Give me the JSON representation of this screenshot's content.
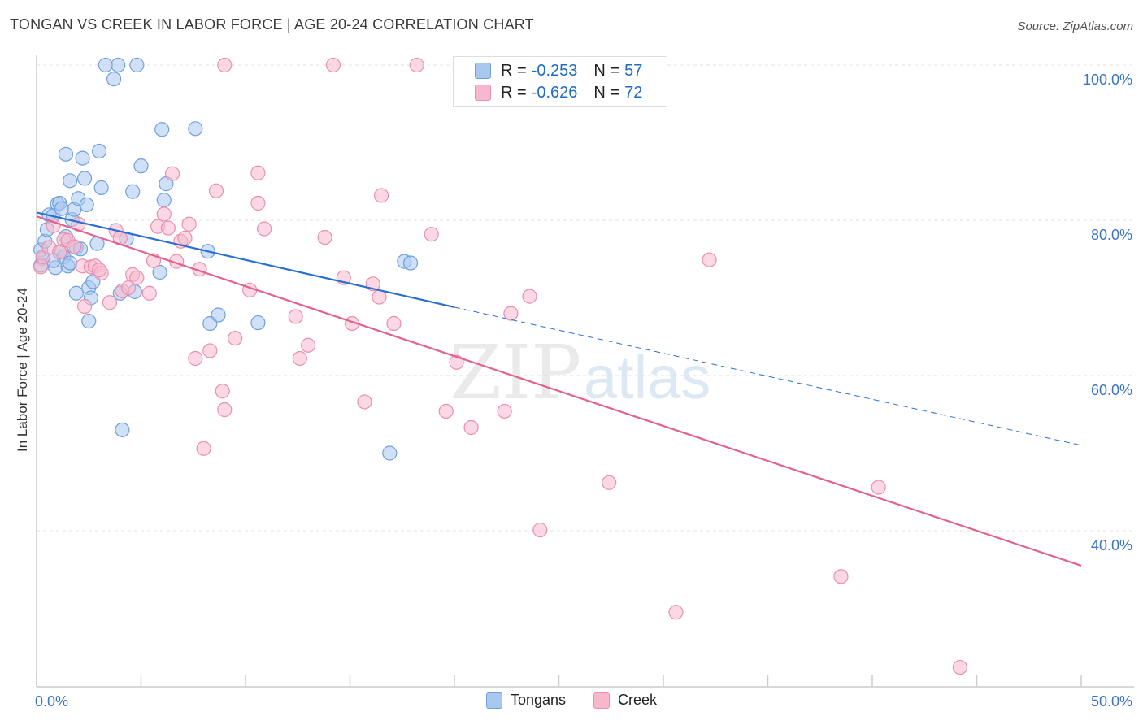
{
  "header": {
    "title": "TONGAN VS CREEK IN LABOR FORCE | AGE 20-24 CORRELATION CHART",
    "source": "Source: ZipAtlas.com"
  },
  "legend": {
    "rows": [
      {
        "r_label": "R =",
        "r_value": "-0.253",
        "n_label": "N =",
        "n_value": "57"
      },
      {
        "r_label": "R =",
        "r_value": "-0.626",
        "n_label": "N =",
        "n_value": "72"
      }
    ]
  },
  "bottom_legend": [
    "Tongans",
    "Creek"
  ],
  "watermark": {
    "zip": "ZIP",
    "atlas": "atlas"
  },
  "colors": {
    "tongans_fill": "#a9c8f0",
    "tongans_stroke": "#6fa0dc",
    "tongans_line": "#2a6fd1",
    "creek_fill": "#f7b8cc",
    "creek_stroke": "#ea8fb0",
    "creek_line": "#e2628f",
    "tick_text": "#3a74c8",
    "grid": "#e2e2e2"
  },
  "chart_data": {
    "type": "scatter",
    "title": "TONGAN VS CREEK IN LABOR FORCE | AGE 20-24 CORRELATION CHART",
    "xlabel": "",
    "ylabel": "In Labor Force | Age 20-24",
    "xlim": [
      0,
      50
    ],
    "ylim": [
      20,
      102
    ],
    "x_tick_labels": [
      {
        "value": 0,
        "label": "0.0%"
      },
      {
        "value": 50,
        "label": "50.0%"
      }
    ],
    "y_ticks": [
      {
        "value": 100,
        "label": "100.0%"
      },
      {
        "value": 80,
        "label": "80.0%"
      },
      {
        "value": 60,
        "label": "60.0%"
      },
      {
        "value": 40,
        "label": "40.0%"
      }
    ],
    "series": [
      {
        "name": "Tongans",
        "R": -0.253,
        "N": 57,
        "trend": {
          "x0": 0,
          "y0": 81.0,
          "x1": 20,
          "y1": 68.8,
          "dash_to_x": 50,
          "dash_to_y": 51.0
        },
        "points": [
          [
            0.2,
            76.2
          ],
          [
            0.3,
            75.1
          ],
          [
            0.2,
            74.2
          ],
          [
            0.4,
            77.3
          ],
          [
            0.5,
            78.8
          ],
          [
            0.6,
            80.7
          ],
          [
            0.8,
            80.6
          ],
          [
            0.9,
            73.9
          ],
          [
            1.0,
            82.1
          ],
          [
            1.1,
            82.2
          ],
          [
            1.2,
            76.0
          ],
          [
            1.2,
            81.5
          ],
          [
            1.3,
            75.3
          ],
          [
            1.4,
            77.9
          ],
          [
            1.5,
            74.1
          ],
          [
            1.6,
            85.1
          ],
          [
            1.7,
            80.1
          ],
          [
            1.8,
            81.4
          ],
          [
            1.9,
            76.5
          ],
          [
            1.9,
            70.6
          ],
          [
            2.0,
            82.8
          ],
          [
            2.1,
            76.3
          ],
          [
            2.3,
            85.4
          ],
          [
            2.4,
            82.0
          ],
          [
            2.5,
            67.0
          ],
          [
            2.5,
            71.3
          ],
          [
            2.6,
            70.0
          ],
          [
            2.7,
            72.1
          ],
          [
            2.9,
            77.0
          ],
          [
            3.0,
            88.9
          ],
          [
            3.1,
            84.2
          ],
          [
            3.3,
            100.0
          ],
          [
            3.7,
            98.2
          ],
          [
            3.9,
            100.0
          ],
          [
            4.0,
            70.6
          ],
          [
            4.1,
            53.0
          ],
          [
            4.3,
            77.6
          ],
          [
            4.6,
            83.7
          ],
          [
            4.7,
            70.8
          ],
          [
            4.8,
            100.0
          ],
          [
            5.0,
            87.0
          ],
          [
            5.9,
            73.3
          ],
          [
            6.0,
            91.7
          ],
          [
            6.1,
            82.6
          ],
          [
            6.2,
            84.7
          ],
          [
            7.6,
            91.8
          ],
          [
            8.2,
            76.0
          ],
          [
            8.3,
            66.7
          ],
          [
            8.7,
            67.8
          ],
          [
            10.6,
            66.8
          ],
          [
            1.4,
            88.5
          ],
          [
            2.2,
            88.0
          ],
          [
            17.6,
            74.7
          ],
          [
            17.9,
            74.5
          ],
          [
            16.9,
            50.0
          ],
          [
            0.8,
            74.8
          ],
          [
            1.6,
            74.5
          ]
        ]
      },
      {
        "name": "Creek",
        "R": -0.626,
        "N": 72,
        "trend": {
          "x0": 0,
          "y0": 80.5,
          "x1": 50,
          "y1": 35.5
        },
        "points": [
          [
            0.2,
            74.0
          ],
          [
            0.3,
            75.3
          ],
          [
            0.6,
            76.5
          ],
          [
            0.8,
            79.3
          ],
          [
            1.1,
            75.9
          ],
          [
            1.3,
            77.5
          ],
          [
            1.5,
            77.4
          ],
          [
            1.8,
            76.6
          ],
          [
            2.0,
            79.5
          ],
          [
            2.2,
            74.1
          ],
          [
            2.3,
            68.9
          ],
          [
            2.6,
            74.0
          ],
          [
            2.8,
            74.1
          ],
          [
            3.1,
            73.2
          ],
          [
            3.5,
            69.4
          ],
          [
            3.8,
            78.7
          ],
          [
            4.0,
            77.7
          ],
          [
            4.1,
            70.9
          ],
          [
            4.4,
            71.3
          ],
          [
            4.6,
            73.0
          ],
          [
            4.8,
            72.6
          ],
          [
            5.4,
            70.6
          ],
          [
            5.6,
            74.8
          ],
          [
            5.8,
            79.2
          ],
          [
            6.1,
            80.8
          ],
          [
            6.3,
            79.0
          ],
          [
            6.5,
            86.0
          ],
          [
            6.7,
            74.7
          ],
          [
            6.9,
            77.3
          ],
          [
            7.1,
            77.7
          ],
          [
            7.3,
            79.5
          ],
          [
            7.6,
            62.2
          ],
          [
            7.8,
            73.7
          ],
          [
            8.0,
            50.6
          ],
          [
            8.3,
            63.2
          ],
          [
            8.6,
            83.8
          ],
          [
            8.9,
            58.0
          ],
          [
            9.0,
            55.6
          ],
          [
            9.5,
            64.8
          ],
          [
            10.2,
            71.0
          ],
          [
            10.6,
            82.2
          ],
          [
            10.6,
            86.1
          ],
          [
            10.9,
            78.9
          ],
          [
            12.4,
            67.6
          ],
          [
            12.6,
            62.2
          ],
          [
            13.0,
            63.9
          ],
          [
            13.8,
            77.8
          ],
          [
            14.2,
            100.0
          ],
          [
            14.7,
            72.6
          ],
          [
            15.1,
            66.7
          ],
          [
            15.7,
            56.6
          ],
          [
            16.1,
            71.8
          ],
          [
            16.4,
            70.1
          ],
          [
            16.5,
            83.2
          ],
          [
            17.1,
            66.7
          ],
          [
            18.9,
            78.2
          ],
          [
            19.6,
            55.4
          ],
          [
            20.1,
            61.7
          ],
          [
            20.8,
            53.3
          ],
          [
            22.4,
            55.4
          ],
          [
            22.7,
            68.0
          ],
          [
            23.6,
            70.2
          ],
          [
            24.1,
            40.1
          ],
          [
            27.4,
            46.2
          ],
          [
            30.6,
            29.5
          ],
          [
            32.2,
            74.9
          ],
          [
            38.5,
            34.1
          ],
          [
            40.3,
            45.6
          ],
          [
            44.2,
            22.4
          ],
          [
            9.0,
            100.0
          ],
          [
            18.2,
            100.0
          ],
          [
            3.0,
            73.6
          ]
        ]
      }
    ]
  }
}
